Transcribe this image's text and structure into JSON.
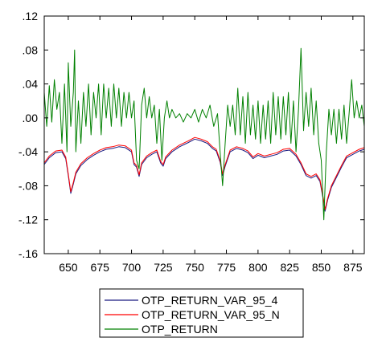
{
  "chart_data": {
    "type": "line",
    "x_range": [
      631,
      884
    ],
    "ylim": [
      -0.16,
      0.12
    ],
    "y_ticks": [
      {
        "value": 0.12,
        "label": ".12"
      },
      {
        "value": 0.08,
        "label": ".08"
      },
      {
        "value": 0.04,
        "label": ".04"
      },
      {
        "value": 0.0,
        "label": ".00"
      },
      {
        "value": -0.04,
        "label": "-.04"
      },
      {
        "value": -0.08,
        "label": "-.08"
      },
      {
        "value": -0.12,
        "label": "-.12"
      },
      {
        "value": -0.16,
        "label": "-.16"
      }
    ],
    "x_ticks": [
      {
        "value": 650,
        "label": "650"
      },
      {
        "value": 675,
        "label": "675"
      },
      {
        "value": 700,
        "label": "700"
      },
      {
        "value": 725,
        "label": "725"
      },
      {
        "value": 750,
        "label": "750"
      },
      {
        "value": 775,
        "label": "775"
      },
      {
        "value": 800,
        "label": "800"
      },
      {
        "value": 825,
        "label": "825"
      },
      {
        "value": 850,
        "label": "850"
      },
      {
        "value": 875,
        "label": "875"
      }
    ],
    "grid": false,
    "legend_position": "bottom",
    "series": [
      {
        "name": "OTP_RETURN_VAR_95_4",
        "color": "#1a1a80",
        "points": [
          [
            631,
            -0.055
          ],
          [
            635,
            -0.047
          ],
          [
            640,
            -0.041
          ],
          [
            645,
            -0.04
          ],
          [
            648,
            -0.048
          ],
          [
            650,
            -0.068
          ],
          [
            652,
            -0.089
          ],
          [
            654,
            -0.078
          ],
          [
            656,
            -0.066
          ],
          [
            660,
            -0.056
          ],
          [
            665,
            -0.049
          ],
          [
            670,
            -0.044
          ],
          [
            675,
            -0.04
          ],
          [
            680,
            -0.037
          ],
          [
            685,
            -0.036
          ],
          [
            690,
            -0.034
          ],
          [
            695,
            -0.035
          ],
          [
            700,
            -0.04
          ],
          [
            702,
            -0.055
          ],
          [
            704,
            -0.058
          ],
          [
            706,
            -0.069
          ],
          [
            708,
            -0.055
          ],
          [
            712,
            -0.047
          ],
          [
            716,
            -0.043
          ],
          [
            720,
            -0.04
          ],
          [
            723,
            -0.053
          ],
          [
            725,
            -0.057
          ],
          [
            727,
            -0.048
          ],
          [
            732,
            -0.04
          ],
          [
            738,
            -0.034
          ],
          [
            745,
            -0.029
          ],
          [
            750,
            -0.025
          ],
          [
            755,
            -0.027
          ],
          [
            760,
            -0.03
          ],
          [
            764,
            -0.036
          ],
          [
            767,
            -0.039
          ],
          [
            770,
            -0.052
          ],
          [
            772,
            -0.068
          ],
          [
            774,
            -0.057
          ],
          [
            778,
            -0.04
          ],
          [
            783,
            -0.036
          ],
          [
            788,
            -0.038
          ],
          [
            792,
            -0.041
          ],
          [
            796,
            -0.048
          ],
          [
            800,
            -0.044
          ],
          [
            805,
            -0.047
          ],
          [
            810,
            -0.045
          ],
          [
            815,
            -0.043
          ],
          [
            820,
            -0.039
          ],
          [
            825,
            -0.038
          ],
          [
            830,
            -0.045
          ],
          [
            834,
            -0.055
          ],
          [
            838,
            -0.068
          ],
          [
            842,
            -0.071
          ],
          [
            846,
            -0.068
          ],
          [
            849,
            -0.075
          ],
          [
            852,
            -0.1
          ],
          [
            853,
            -0.11
          ],
          [
            855,
            -0.097
          ],
          [
            858,
            -0.082
          ],
          [
            862,
            -0.07
          ],
          [
            866,
            -0.058
          ],
          [
            870,
            -0.047
          ],
          [
            875,
            -0.043
          ],
          [
            880,
            -0.039
          ],
          [
            884,
            -0.037
          ]
        ]
      },
      {
        "name": "OTP_RETURN_VAR_95_N",
        "color": "#ff0000",
        "points": [
          [
            631,
            -0.053
          ],
          [
            635,
            -0.045
          ],
          [
            640,
            -0.039
          ],
          [
            645,
            -0.038
          ],
          [
            648,
            -0.046
          ],
          [
            650,
            -0.066
          ],
          [
            652,
            -0.087
          ],
          [
            654,
            -0.076
          ],
          [
            656,
            -0.064
          ],
          [
            660,
            -0.054
          ],
          [
            665,
            -0.047
          ],
          [
            670,
            -0.042
          ],
          [
            675,
            -0.038
          ],
          [
            680,
            -0.035
          ],
          [
            685,
            -0.034
          ],
          [
            690,
            -0.032
          ],
          [
            695,
            -0.033
          ],
          [
            700,
            -0.038
          ],
          [
            702,
            -0.053
          ],
          [
            704,
            -0.056
          ],
          [
            706,
            -0.067
          ],
          [
            708,
            -0.053
          ],
          [
            712,
            -0.045
          ],
          [
            716,
            -0.041
          ],
          [
            720,
            -0.038
          ],
          [
            723,
            -0.051
          ],
          [
            725,
            -0.055
          ],
          [
            727,
            -0.046
          ],
          [
            732,
            -0.038
          ],
          [
            738,
            -0.032
          ],
          [
            745,
            -0.027
          ],
          [
            750,
            -0.023
          ],
          [
            755,
            -0.025
          ],
          [
            760,
            -0.028
          ],
          [
            764,
            -0.034
          ],
          [
            767,
            -0.037
          ],
          [
            770,
            -0.05
          ],
          [
            772,
            -0.066
          ],
          [
            774,
            -0.055
          ],
          [
            778,
            -0.038
          ],
          [
            783,
            -0.034
          ],
          [
            788,
            -0.036
          ],
          [
            792,
            -0.039
          ],
          [
            796,
            -0.046
          ],
          [
            800,
            -0.042
          ],
          [
            805,
            -0.045
          ],
          [
            810,
            -0.043
          ],
          [
            815,
            -0.041
          ],
          [
            820,
            -0.037
          ],
          [
            825,
            -0.036
          ],
          [
            830,
            -0.043
          ],
          [
            834,
            -0.053
          ],
          [
            838,
            -0.066
          ],
          [
            842,
            -0.069
          ],
          [
            846,
            -0.066
          ],
          [
            849,
            -0.073
          ],
          [
            852,
            -0.098
          ],
          [
            853,
            -0.108
          ],
          [
            855,
            -0.095
          ],
          [
            858,
            -0.08
          ],
          [
            862,
            -0.068
          ],
          [
            866,
            -0.056
          ],
          [
            870,
            -0.045
          ],
          [
            875,
            -0.041
          ],
          [
            880,
            -0.037
          ],
          [
            884,
            -0.035
          ]
        ]
      },
      {
        "name": "OTP_RETURN",
        "color": "#008000",
        "points": [
          [
            631,
            0.03
          ],
          [
            633,
            -0.01
          ],
          [
            635,
            0.038
          ],
          [
            637,
            -0.005
          ],
          [
            639,
            0.045
          ],
          [
            641,
            0.01
          ],
          [
            643,
            0.03
          ],
          [
            645,
            -0.03
          ],
          [
            647,
            0.04
          ],
          [
            649,
            -0.04
          ],
          [
            650,
            0.065
          ],
          [
            652,
            -0.01
          ],
          [
            654,
            0.03
          ],
          [
            655,
            0.08
          ],
          [
            656,
            -0.04
          ],
          [
            658,
            0.02
          ],
          [
            660,
            -0.03
          ],
          [
            662,
            0.03
          ],
          [
            664,
            -0.01
          ],
          [
            666,
            0.04
          ],
          [
            668,
            -0.02
          ],
          [
            670,
            0.03
          ],
          [
            672,
            0.0
          ],
          [
            674,
            0.04
          ],
          [
            676,
            -0.02
          ],
          [
            678,
            0.04
          ],
          [
            680,
            0.0
          ],
          [
            682,
            0.035
          ],
          [
            684,
            -0.01
          ],
          [
            686,
            0.04
          ],
          [
            688,
            0.0
          ],
          [
            690,
            0.035
          ],
          [
            692,
            -0.01
          ],
          [
            694,
            0.03
          ],
          [
            696,
            0.0
          ],
          [
            698,
            0.03
          ],
          [
            700,
            0.0
          ],
          [
            702,
            0.02
          ],
          [
            704,
            -0.05
          ],
          [
            706,
            -0.06
          ],
          [
            708,
            0.015
          ],
          [
            710,
            0.035
          ],
          [
            712,
            0.0
          ],
          [
            714,
            0.025
          ],
          [
            716,
            0.0
          ],
          [
            718,
            0.015
          ],
          [
            720,
            -0.03
          ],
          [
            722,
            0.01
          ],
          [
            724,
            -0.05
          ],
          [
            726,
            0.0
          ],
          [
            728,
            0.02
          ],
          [
            730,
            0.0
          ],
          [
            732,
            0.01
          ],
          [
            735,
            0.0
          ],
          [
            738,
            0.005
          ],
          [
            741,
            -0.005
          ],
          [
            744,
            0.005
          ],
          [
            747,
            0.0
          ],
          [
            750,
            0.01
          ],
          [
            753,
            -0.005
          ],
          [
            756,
            0.01
          ],
          [
            759,
            0.0
          ],
          [
            762,
            0.015
          ],
          [
            765,
            -0.01
          ],
          [
            768,
            0.005
          ],
          [
            770,
            -0.04
          ],
          [
            772,
            -0.08
          ],
          [
            774,
            -0.03
          ],
          [
            776,
            0.015
          ],
          [
            778,
            -0.01
          ],
          [
            780,
            0.015
          ],
          [
            782,
            -0.02
          ],
          [
            784,
            0.035
          ],
          [
            786,
            -0.02
          ],
          [
            788,
            0.025
          ],
          [
            790,
            -0.03
          ],
          [
            792,
            0.03
          ],
          [
            794,
            -0.02
          ],
          [
            796,
            0.015
          ],
          [
            798,
            -0.025
          ],
          [
            800,
            0.02
          ],
          [
            802,
            -0.03
          ],
          [
            804,
            0.015
          ],
          [
            806,
            -0.025
          ],
          [
            808,
            0.02
          ],
          [
            810,
            -0.03
          ],
          [
            812,
            0.03
          ],
          [
            814,
            -0.02
          ],
          [
            816,
            0.025
          ],
          [
            818,
            -0.025
          ],
          [
            820,
            0.025
          ],
          [
            822,
            -0.02
          ],
          [
            824,
            0.03
          ],
          [
            826,
            -0.03
          ],
          [
            828,
            0.02
          ],
          [
            830,
            -0.04
          ],
          [
            832,
            0.01
          ],
          [
            834,
            0.082
          ],
          [
            836,
            -0.015
          ],
          [
            838,
            0.03
          ],
          [
            840,
            -0.01
          ],
          [
            842,
            0.035
          ],
          [
            844,
            -0.02
          ],
          [
            846,
            0.02
          ],
          [
            848,
            -0.03
          ],
          [
            850,
            -0.05
          ],
          [
            852,
            -0.12
          ],
          [
            854,
            -0.04
          ],
          [
            856,
            0.01
          ],
          [
            858,
            -0.02
          ],
          [
            860,
            0.01
          ],
          [
            862,
            -0.03
          ],
          [
            864,
            0.01
          ],
          [
            866,
            -0.025
          ],
          [
            868,
            0.015
          ],
          [
            870,
            -0.03
          ],
          [
            872,
            0.005
          ],
          [
            874,
            0.045
          ],
          [
            876,
            0.0
          ],
          [
            878,
            0.02
          ],
          [
            880,
            0.0
          ],
          [
            882,
            0.015
          ],
          [
            884,
            -0.01
          ]
        ]
      }
    ]
  }
}
